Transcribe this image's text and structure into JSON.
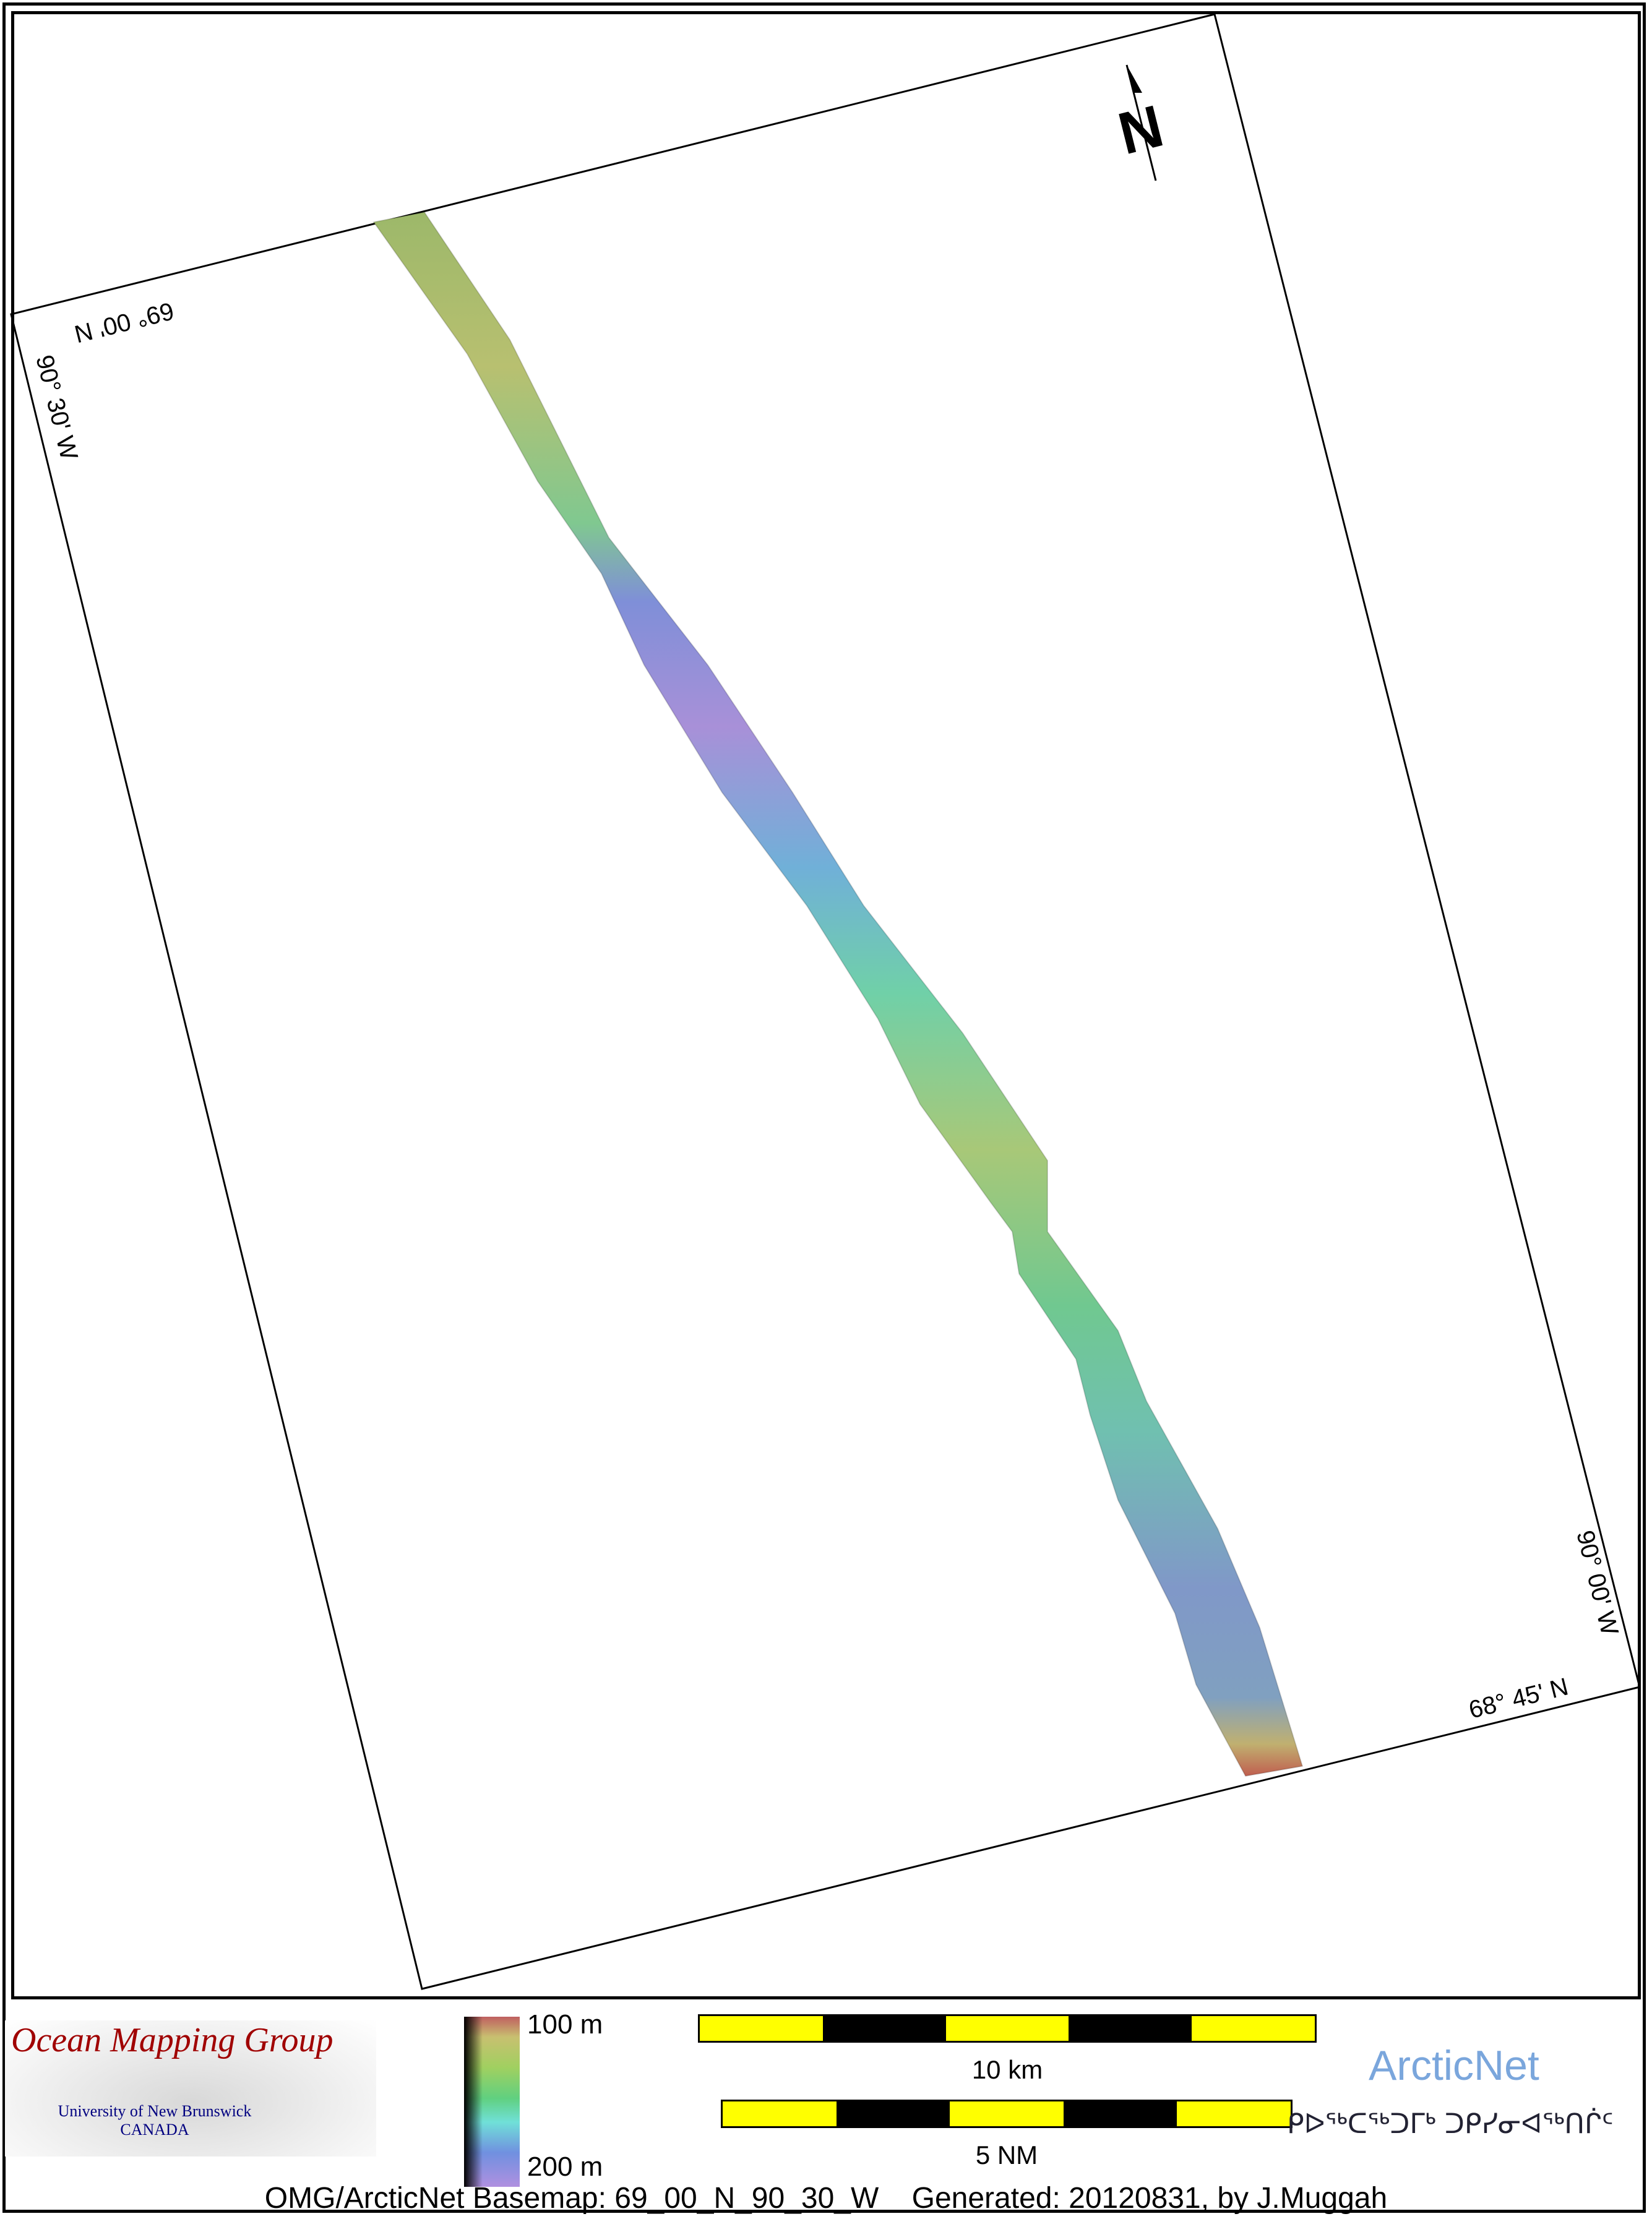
{
  "map": {
    "labels": {
      "top_lat": "69° 00' N",
      "left_lon": "90° 30' W",
      "right_lon": "90° 00' W",
      "bottom_lat": "68° 45' N"
    },
    "north_arrow": "N",
    "icons": [
      "north-arrow-icon"
    ]
  },
  "legend": {
    "omg_title": "Ocean Mapping Group",
    "omg_sub1": "University of New Brunswick",
    "omg_sub2": "CANADA",
    "depth_min": "100 m",
    "depth_max": "200 m",
    "scale_km": "10 km",
    "scale_nm": "5 NM",
    "arcticnet": "ArcticNet",
    "arcticnet_inuktitut": "ᑭᐅᖅᑕᖅᑐᒥᒃ ᑐᑭᓯᓂᐊᖅᑎᒌᑦ",
    "caption": "OMG/ArcticNet Basemap: 69_00_N_90_30_W    Generated: 20120831, by J.Muggah",
    "colors": {
      "scale_yellow": "#ffff00",
      "omg_red": "#a00000",
      "arcticnet_blue": "#7aa6dc"
    }
  }
}
